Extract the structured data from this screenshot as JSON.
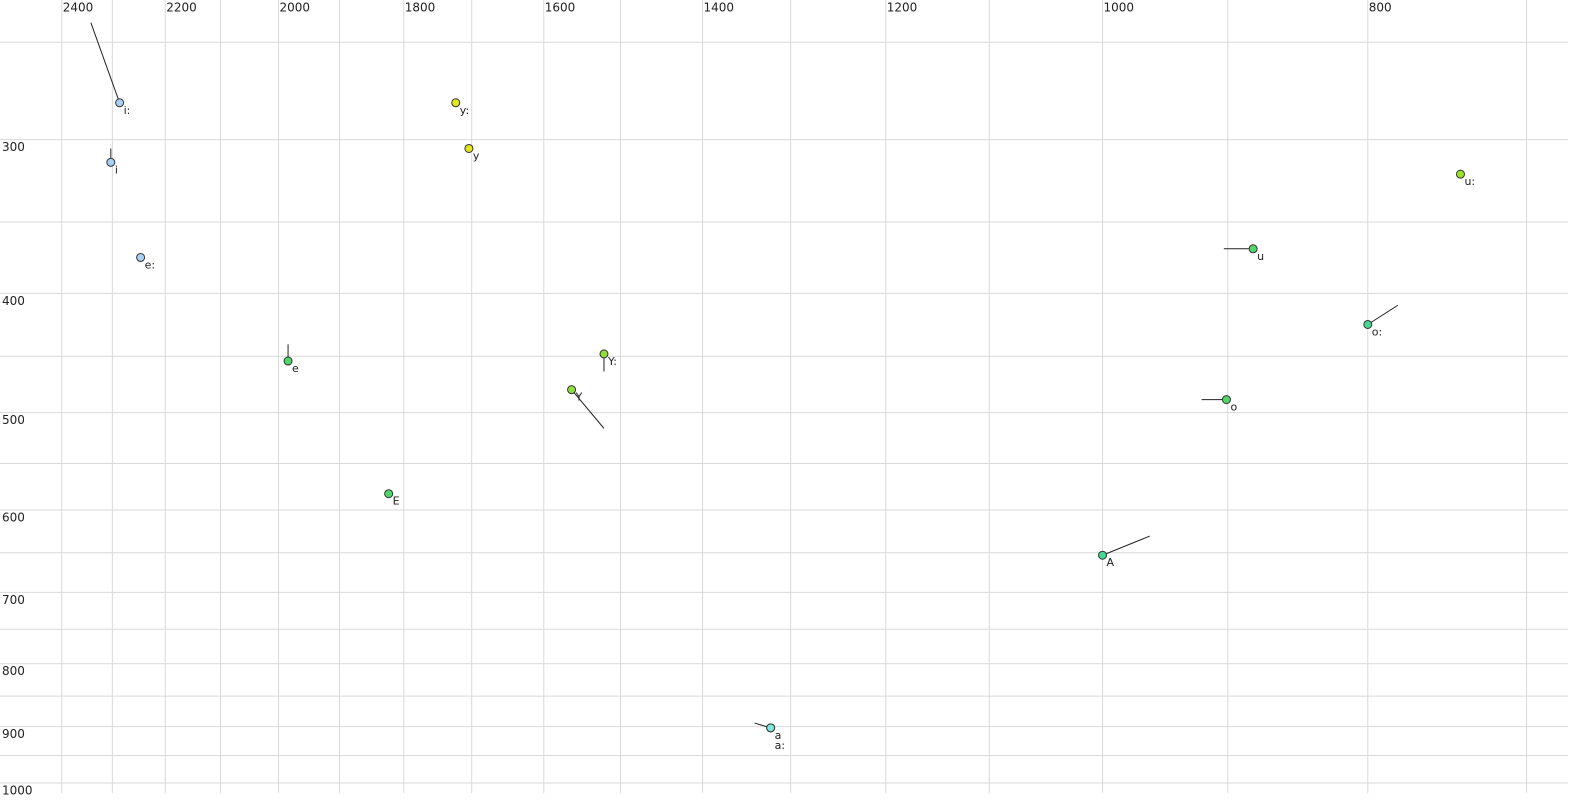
{
  "chart_data": {
    "type": "scatter",
    "xscale": "log",
    "yscale": "log",
    "grid": true,
    "xlim": [
      2528,
      676
    ],
    "ylim": [
      231,
      1019
    ],
    "xticks": [
      2400,
      2200,
      2000,
      1800,
      1600,
      1400,
      1200,
      1000,
      800
    ],
    "x_minor_ticks": [
      2300,
      2100,
      1900,
      1700,
      1500,
      1300,
      1100,
      900,
      700
    ],
    "yticks": [
      300,
      400,
      500,
      600,
      700,
      800,
      900,
      1000
    ],
    "y_minor_ticks": [
      250,
      350,
      450,
      550,
      650,
      750,
      850,
      950
    ],
    "points": [
      {
        "label": "i:",
        "x": 2286,
        "y": 280,
        "color": "#a8cff5",
        "x_end": 2342,
        "y_end": 241
      },
      {
        "label": "i",
        "x": 2303,
        "y": 313,
        "color": "#a8cff5",
        "x_end": 2303,
        "y_end": 305
      },
      {
        "label": "e:",
        "x": 2246,
        "y": 374,
        "color": "#a8cff5"
      },
      {
        "label": "e",
        "x": 1984,
        "y": 454,
        "color": "#4fd86a",
        "x_end": 1984,
        "y_end": 440
      },
      {
        "label": "E",
        "x": 1823,
        "y": 582,
        "color": "#4fd86a"
      },
      {
        "label": "y:",
        "x": 1723,
        "y": 280,
        "color": "#e3e61c"
      },
      {
        "label": "y",
        "x": 1704,
        "y": 305,
        "color": "#e3e61c"
      },
      {
        "label": "Y:",
        "x": 1521,
        "y": 448,
        "color": "#8fe03a",
        "x_end": 1521,
        "y_end": 463
      },
      {
        "label": "Y",
        "x": 1563,
        "y": 479,
        "color": "#8fe03a",
        "x_end": 1521,
        "y_end": 515
      },
      {
        "label": "u:",
        "x": 740,
        "y": 320,
        "color": "#9be22a"
      },
      {
        "label": "u",
        "x": 881,
        "y": 368,
        "color": "#4fd86a",
        "x_end": 903,
        "y_end": 368
      },
      {
        "label": "o:",
        "x": 800,
        "y": 424,
        "color": "#45d690",
        "x_end": 780,
        "y_end": 409
      },
      {
        "label": "o",
        "x": 901,
        "y": 488,
        "color": "#4fd86a",
        "x_end": 920,
        "y_end": 488
      },
      {
        "label": "A",
        "x": 1000,
        "y": 653,
        "color": "#45d690",
        "x_end": 961,
        "y_end": 630
      },
      {
        "label": "a",
        "x": 1322,
        "y": 902,
        "color": "#7ee8de",
        "x_end": 1340,
        "y_end": 894
      },
      {
        "label": "a:",
        "x": 1322,
        "y": 902,
        "color": "#7ee8de"
      }
    ]
  }
}
